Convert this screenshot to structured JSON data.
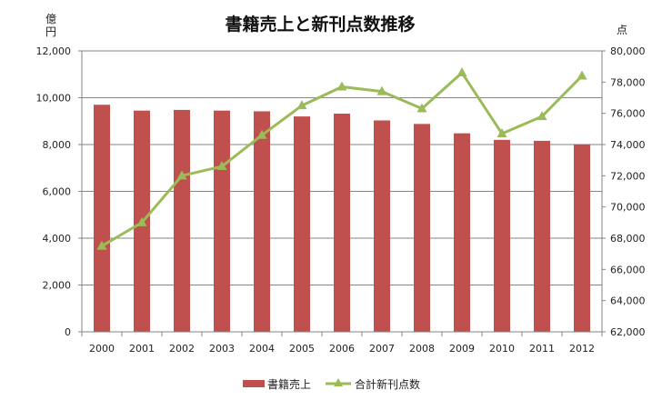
{
  "chart_data": {
    "type": "bar",
    "title": "書籍売上と新刊点数推移",
    "categories": [
      "2000",
      "2001",
      "2002",
      "2003",
      "2004",
      "2005",
      "2006",
      "2007",
      "2008",
      "2009",
      "2010",
      "2011",
      "2012"
    ],
    "series": [
      {
        "name": "書籍売上",
        "type": "bar",
        "axis": "left",
        "color": "#c0504d",
        "values": [
          9700,
          9450,
          9480,
          9450,
          9420,
          9200,
          9320,
          9030,
          8880,
          8480,
          8200,
          8160,
          8010
        ]
      },
      {
        "name": "合計新刊点数",
        "type": "line",
        "axis": "right",
        "color": "#9bbb59",
        "marker": "triangle",
        "values": [
          67500,
          69000,
          72000,
          72600,
          74600,
          76500,
          77700,
          77400,
          76300,
          78600,
          74700,
          75800,
          78400
        ]
      }
    ],
    "y_left": {
      "unit_line1": "億",
      "unit_line2": "円",
      "min": 0,
      "max": 12000,
      "step": 2000,
      "tick_labels": [
        "0",
        "2,000",
        "4,000",
        "6,000",
        "8,000",
        "10,000",
        "12,000"
      ]
    },
    "y_right": {
      "unit": "点",
      "min": 62000,
      "max": 80000,
      "step": 2000,
      "tick_labels": [
        "62,000",
        "64,000",
        "66,000",
        "68,000",
        "70,000",
        "72,000",
        "74,000",
        "76,000",
        "78,000",
        "80,000"
      ]
    },
    "grid": true,
    "legend": {
      "position": "bottom",
      "items": [
        {
          "label": "書籍売上",
          "kind": "bar"
        },
        {
          "label": "合計新刊点数",
          "kind": "line"
        }
      ]
    },
    "grid_color": "#868686",
    "axis_color": "#868686"
  }
}
